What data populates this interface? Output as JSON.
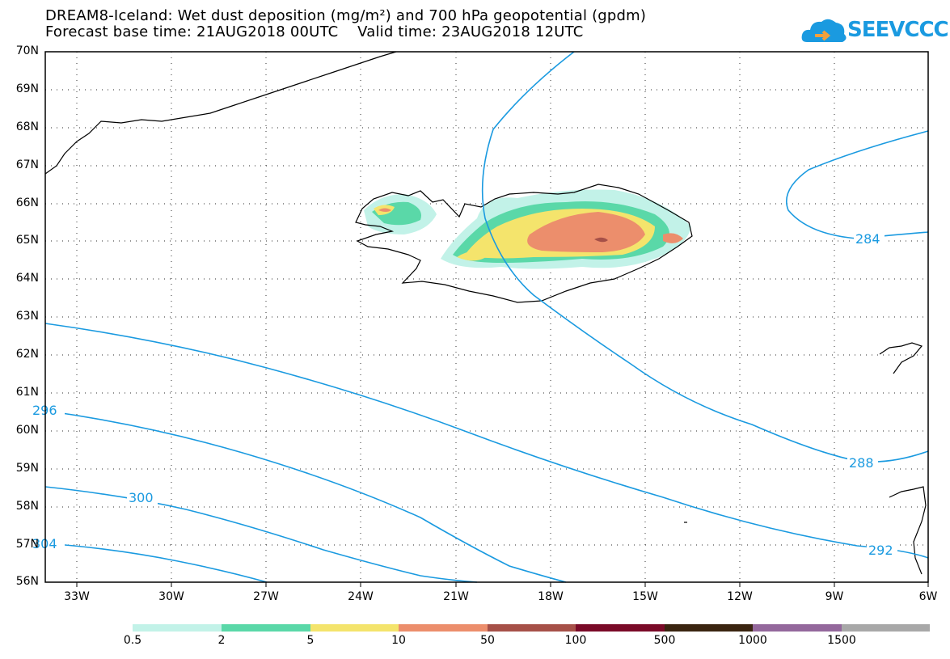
{
  "title_line1": "DREAM8-Iceland: Wet dust deposition (mg/m²) and 700 hPa geopotential (gpdm)",
  "title_line2": "Forecast base time: 21AUG2018 00UTC    Valid time: 23AUG2018 12UTC",
  "logo_text": "SEEVCCC",
  "lat_labels": [
    "70N",
    "69N",
    "68N",
    "67N",
    "66N",
    "65N",
    "64N",
    "63N",
    "62N",
    "61N",
    "60N",
    "59N",
    "58N",
    "57N",
    "56N"
  ],
  "lon_labels": [
    "33W",
    "30W",
    "27W",
    "24W",
    "21W",
    "18W",
    "15W",
    "12W",
    "9W",
    "6W"
  ],
  "contour_labels": [
    "284",
    "288",
    "292",
    "296",
    "300",
    "304"
  ],
  "colorbar": {
    "labels": [
      "0.5",
      "2",
      "5",
      "10",
      "50",
      "100",
      "500",
      "1000",
      "1500"
    ],
    "colors": [
      "#c2f2e8",
      "#5ad8a8",
      "#f4e46c",
      "#ec8e6c",
      "#a65048",
      "#7a0a28",
      "#3a2410",
      "#94689c",
      "#a8a8a8"
    ]
  },
  "colors": {
    "contour": "#1a9ae0",
    "coast": "#000000",
    "grid": "#555555"
  }
}
